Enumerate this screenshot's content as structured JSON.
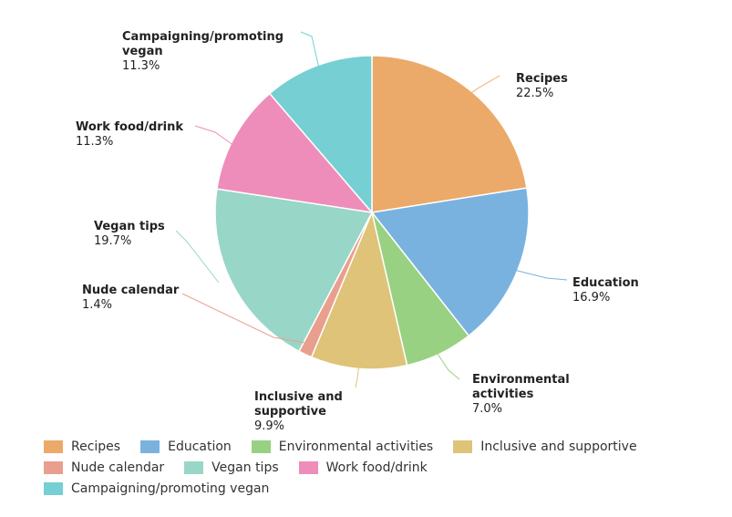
{
  "chart_data": {
    "type": "pie",
    "title": "",
    "slices": [
      {
        "name": "Recipes",
        "label_lines": [
          "Recipes"
        ],
        "value": 22.5,
        "value_text": "22.5%",
        "color": "#EBAA69"
      },
      {
        "name": "Education",
        "label_lines": [
          "Education"
        ],
        "value": 16.9,
        "value_text": "16.9%",
        "color": "#7AB2DF"
      },
      {
        "name": "Environmental activities",
        "label_lines": [
          "Environmental",
          "activities"
        ],
        "value": 7.0,
        "value_text": "7.0%",
        "color": "#98D182"
      },
      {
        "name": "Inclusive and supportive",
        "label_lines": [
          "Inclusive and",
          "supportive"
        ],
        "value": 9.9,
        "value_text": "9.9%",
        "color": "#DEC378"
      },
      {
        "name": "Nude calendar",
        "label_lines": [
          "Nude calendar"
        ],
        "value": 1.4,
        "value_text": "1.4%",
        "color": "#E99F8E"
      },
      {
        "name": "Vegan tips",
        "label_lines": [
          "Vegan tips"
        ],
        "value": 19.7,
        "value_text": "19.7%",
        "color": "#98D6C8"
      },
      {
        "name": "Work food/drink",
        "label_lines": [
          "Work food/drink"
        ],
        "value": 11.3,
        "value_text": "11.3%",
        "color": "#EE8DBA"
      },
      {
        "name": "Campaigning/promoting vegan",
        "label_lines": [
          "Campaigning/promoting",
          "vegan"
        ],
        "value": 11.3,
        "value_text": "11.3%",
        "color": "#75CFD3"
      }
    ],
    "legend": {
      "position": "bottom",
      "rows": [
        [
          "Recipes",
          "Education",
          "Environmental activities",
          "Inclusive and supportive"
        ],
        [
          "Nude calendar",
          "Vegan tips",
          "Work food/drink"
        ],
        [
          "Campaigning/promoting vegan"
        ]
      ]
    }
  }
}
